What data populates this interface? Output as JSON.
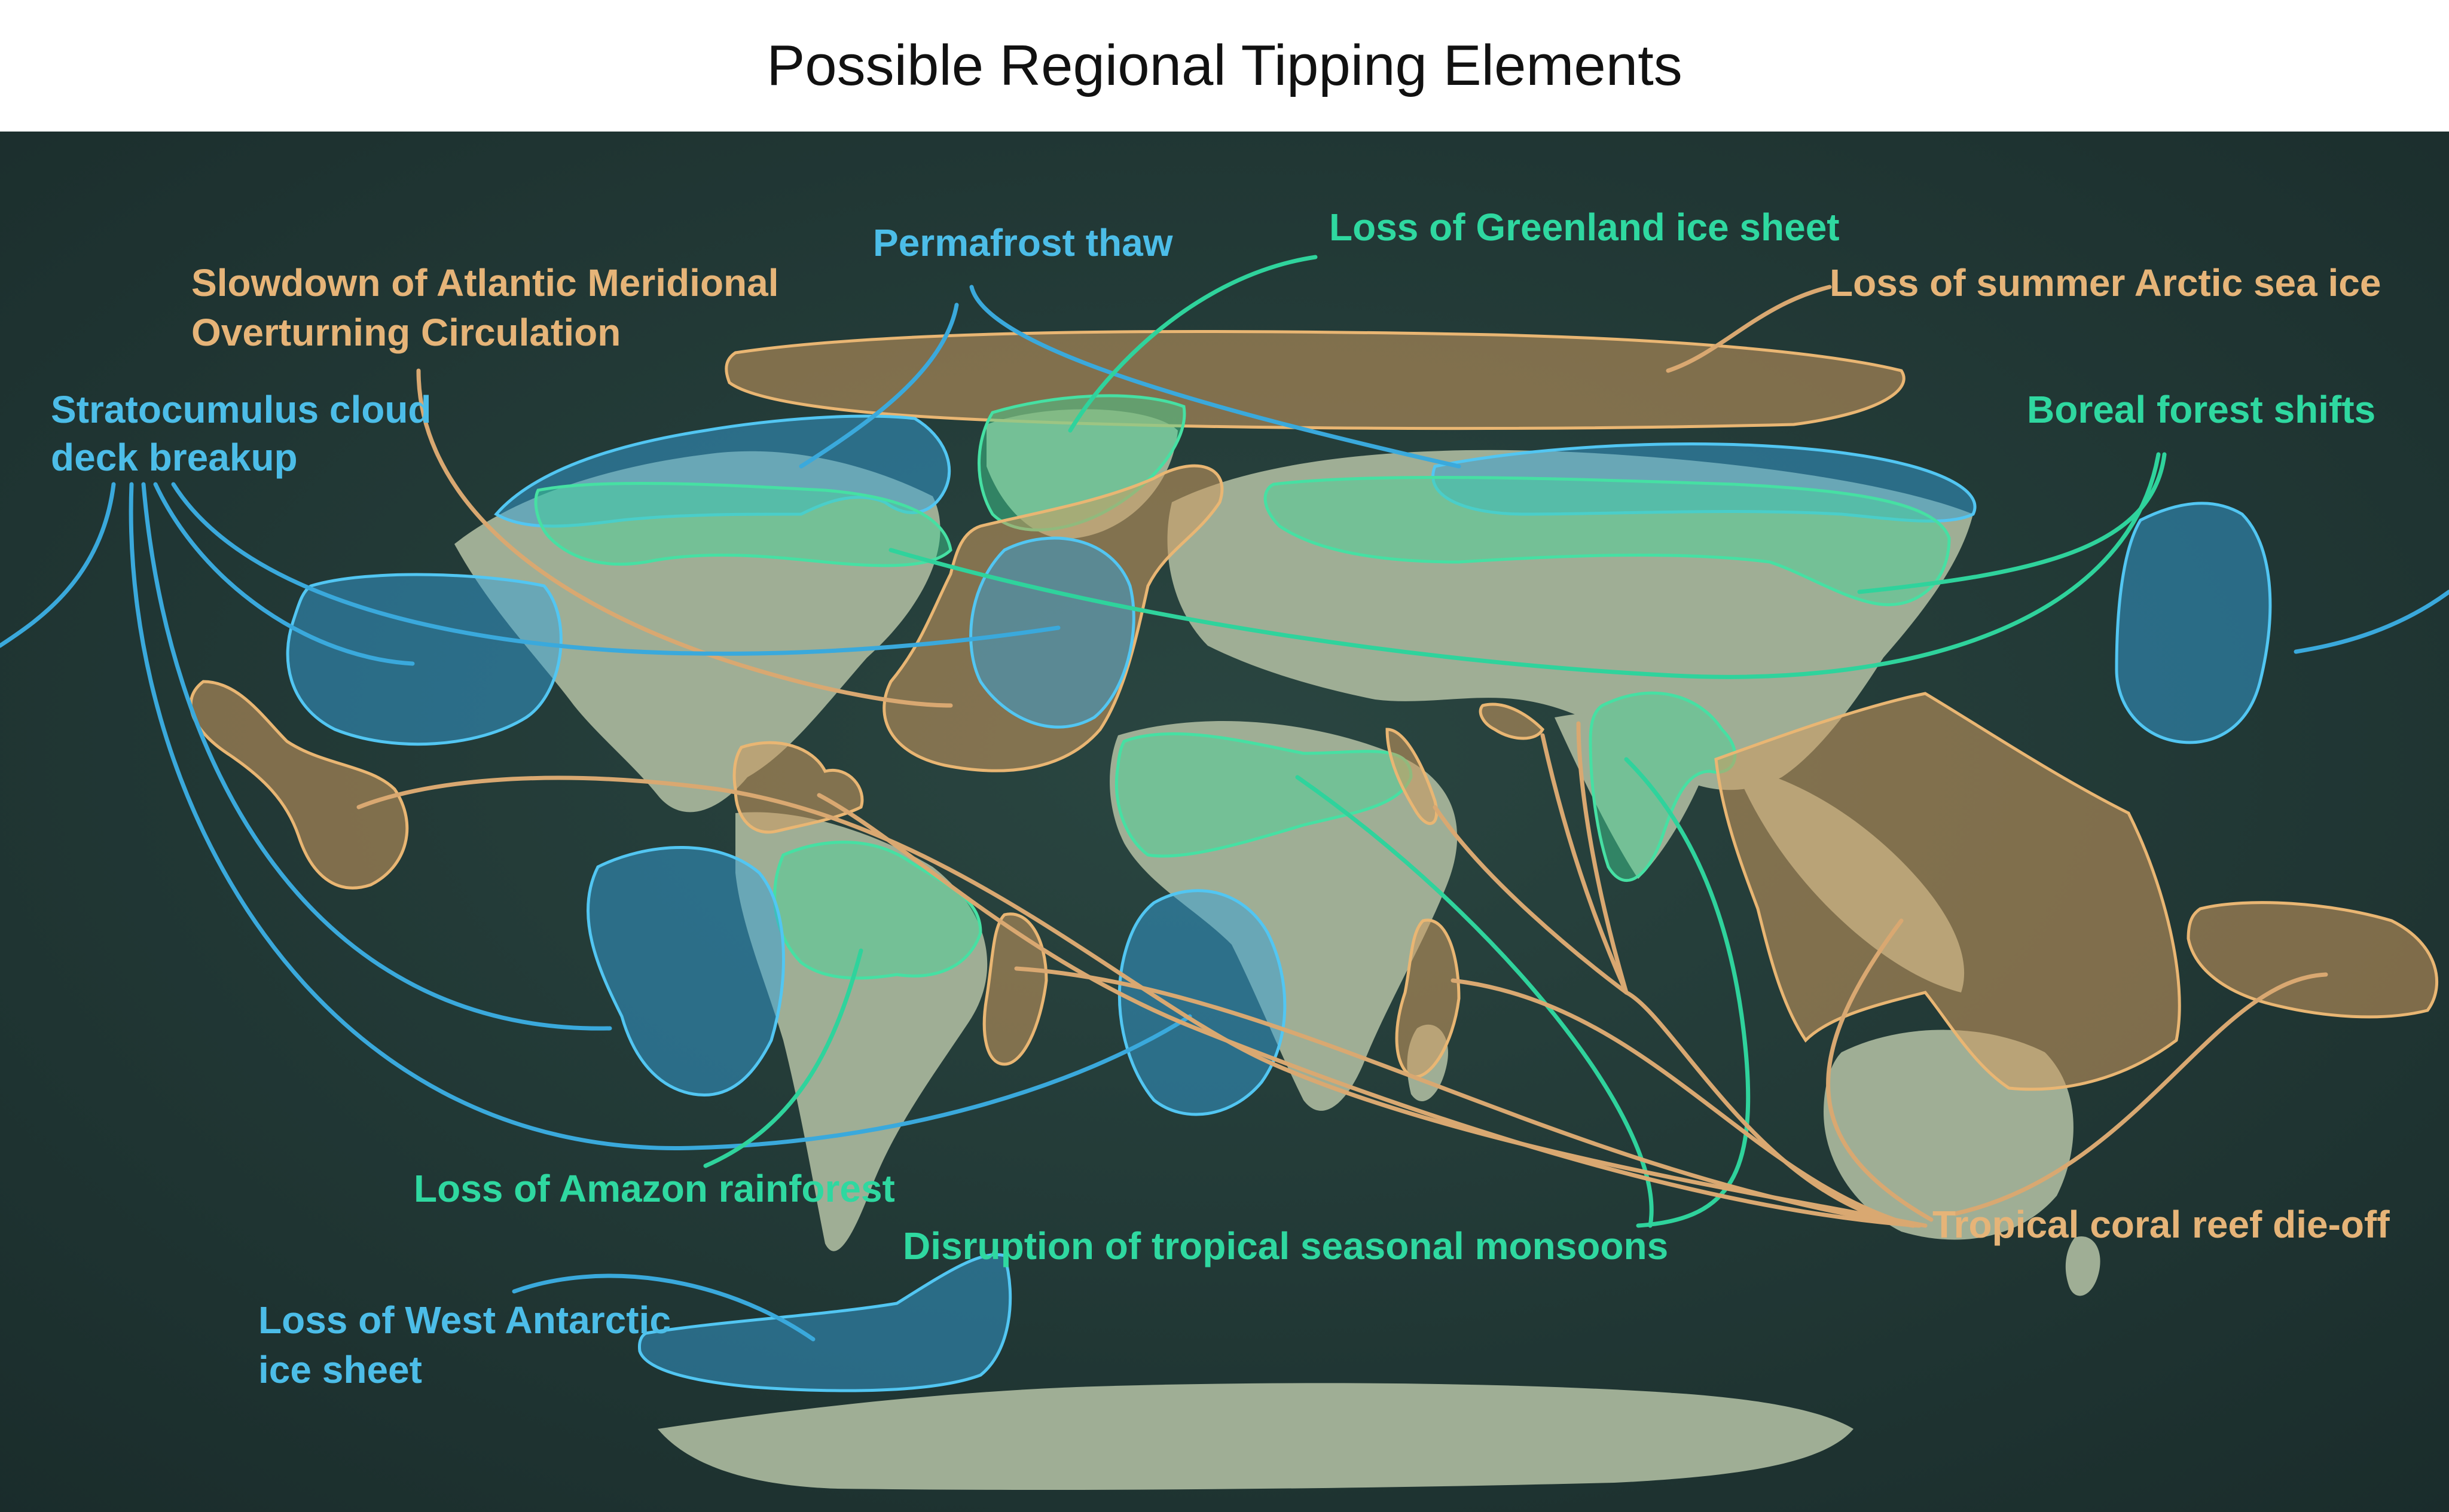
{
  "title": "Possible Regional Tipping Elements",
  "colors": {
    "background": "#1f3535",
    "land": "#9fae95",
    "blue": "#4cbde8",
    "green": "#2fd8a0",
    "orange": "#e6b478"
  },
  "labels": {
    "permafrost": "Permafrost thaw",
    "greenland": "Loss of Greenland ice sheet",
    "amoc_line1": "Slowdown of Atlantic Meridional",
    "amoc_line2": "Overturning Circulation",
    "arctic_ice": "Loss of summer Arctic sea ice",
    "stratocumulus_line1": "Stratocumulus cloud",
    "stratocumulus_line2": "deck breakup",
    "boreal": "Boreal forest shifts",
    "amazon": "Loss of Amazon rainforest",
    "monsoons": "Disruption of tropical seasonal monsoons",
    "coral": "Tropical coral reef die-off",
    "antarctic_line1": "Loss of West Antarctic",
    "antarctic_line2": "ice sheet"
  }
}
